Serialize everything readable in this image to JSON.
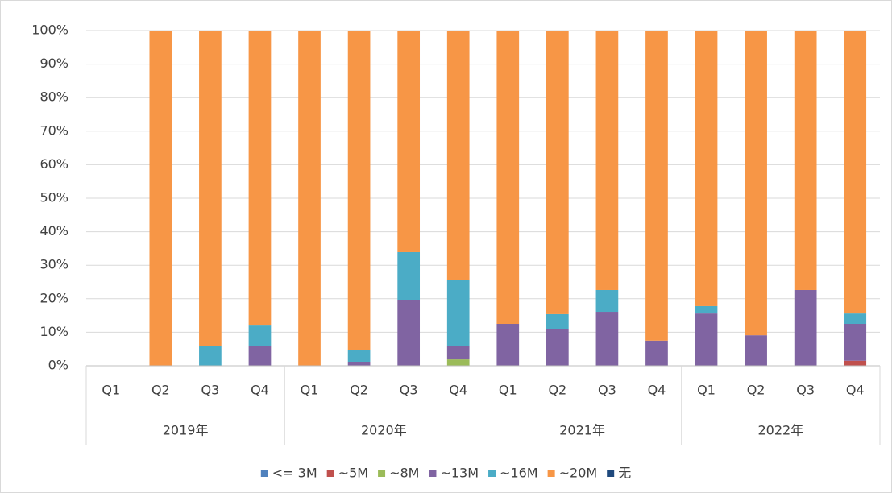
{
  "chart_data": {
    "type": "stacked_bar",
    "categories": [
      "Q1",
      "Q2",
      "Q3",
      "Q4",
      "Q1",
      "Q2",
      "Q3",
      "Q4",
      "Q1",
      "Q2",
      "Q3",
      "Q4",
      "Q1",
      "Q2",
      "Q3",
      "Q4"
    ],
    "x_groups": [
      "2019年",
      "2020年",
      "2021年",
      "2022年"
    ],
    "series": [
      {
        "name": "<= 3M",
        "color": "#4f81bd",
        "values": [
          0,
          0,
          0,
          0,
          0,
          0,
          0,
          0,
          0,
          0,
          0,
          0,
          0,
          0,
          0,
          0
        ]
      },
      {
        "name": "~5M",
        "color": "#c0504d",
        "values": [
          0,
          0,
          0,
          0,
          0,
          0,
          0,
          0,
          0,
          0,
          0,
          0,
          0,
          0,
          0,
          1.5
        ]
      },
      {
        "name": "~8M",
        "color": "#9bbb59",
        "values": [
          0,
          0,
          0,
          0,
          0,
          0,
          0,
          1.9,
          0,
          0,
          0,
          0,
          0,
          0,
          0,
          0
        ]
      },
      {
        "name": "~13M",
        "color": "#8064a2",
        "values": [
          0,
          0,
          0,
          6,
          0,
          1.2,
          19.5,
          3.9,
          12.5,
          11,
          16.1,
          7.5,
          15.6,
          9.1,
          22.6,
          11
        ]
      },
      {
        "name": "~16M",
        "color": "#4bacc6",
        "values": [
          0,
          0,
          6,
          6,
          0,
          3.6,
          14.4,
          19.7,
          0,
          4.4,
          6.5,
          0,
          2.2,
          0,
          0,
          3.1
        ]
      },
      {
        "name": "~20M",
        "color": "#f79646",
        "values": [
          0,
          100,
          94,
          88,
          100,
          95.2,
          66.1,
          74.5,
          87.5,
          84.6,
          77.4,
          92.5,
          82.2,
          90.9,
          77.4,
          84.4
        ]
      },
      {
        "name": "无",
        "color": "#1f497d",
        "values": [
          0,
          0,
          0,
          0,
          0,
          0,
          0,
          0,
          0,
          0,
          0,
          0,
          0,
          0,
          0,
          0
        ]
      }
    ],
    "ylim": [
      0,
      100
    ],
    "yticks": [
      {
        "value": 0,
        "label": "0%"
      },
      {
        "value": 10,
        "label": "10%"
      },
      {
        "value": 20,
        "label": "20%"
      },
      {
        "value": 30,
        "label": "30%"
      },
      {
        "value": 40,
        "label": "40%"
      },
      {
        "value": 50,
        "label": "50%"
      },
      {
        "value": 60,
        "label": "60%"
      },
      {
        "value": 70,
        "label": "70%"
      },
      {
        "value": 80,
        "label": "80%"
      },
      {
        "value": 90,
        "label": "90%"
      },
      {
        "value": 100,
        "label": "100%"
      }
    ],
    "grid": true,
    "legend": "bottom"
  }
}
